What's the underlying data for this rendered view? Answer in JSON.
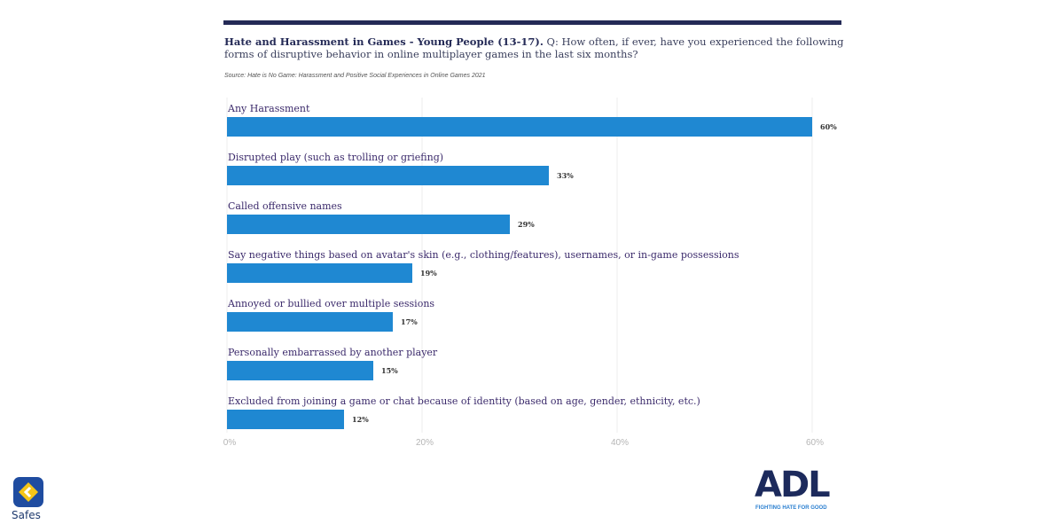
{
  "header": {
    "title_bold": "Hate and Harassment in Games - Young People (13-17).",
    "title_rest": " Q: How often, if ever, have you experienced the following forms of disruptive behavior in online multiplayer games in the last six months?",
    "source": "Source: Hate is No Game: Harassment and Positive Social Experiences in Online Games 2021"
  },
  "chart_data": {
    "type": "bar",
    "orientation": "horizontal",
    "categories": [
      "Any Harassment",
      "Disrupted play (such as trolling or griefing)",
      "Called offensive names",
      "Say negative things based on avatar's skin (e.g., clothing/features), usernames, or in-game possessions",
      "Annoyed or bullied over multiple sessions",
      "Personally embarrassed by another player",
      "Excluded from joining a game or chat because of identity (based on age, gender, ethnicity, etc.)"
    ],
    "values": [
      60,
      33,
      29,
      19,
      17,
      15,
      12
    ],
    "data_labels": [
      "60%",
      "33%",
      "29%",
      "19%",
      "17%",
      "15%",
      "12%"
    ],
    "xlim": [
      0,
      60
    ],
    "xticks": [
      "0%",
      "20%",
      "40%",
      "60%"
    ],
    "grid": true,
    "bar_color": "#1f88d2"
  },
  "logos": {
    "safes": "Safes",
    "adl": "ADL",
    "adl_tagline": "FIGHTING HATE FOR GOOD"
  }
}
